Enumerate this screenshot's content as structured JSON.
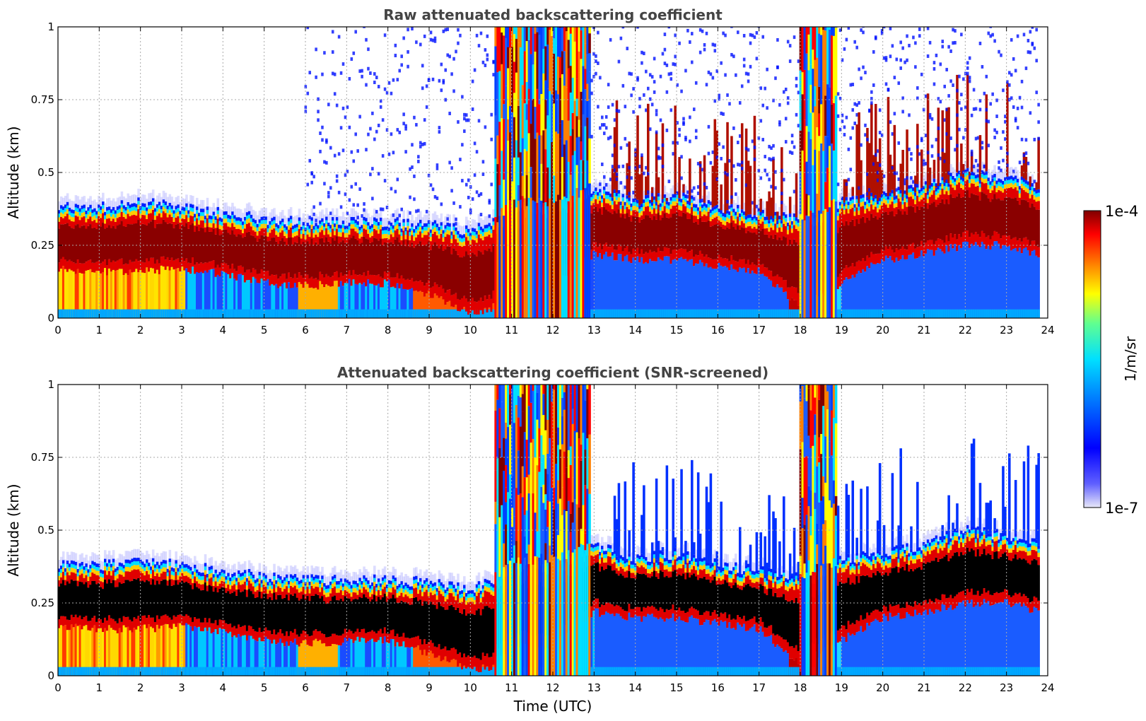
{
  "chart_data": [
    {
      "type": "heatmap",
      "title": "Raw attenuated backscattering coefficient",
      "xlabel": "",
      "ylabel": "Altitude (km)",
      "xlim": [
        0,
        24
      ],
      "ylim": [
        0,
        1
      ],
      "xticks": [
        "0",
        "1",
        "2",
        "3",
        "4",
        "5",
        "6",
        "7",
        "8",
        "9",
        "10",
        "11",
        "12",
        "13",
        "14",
        "15",
        "16",
        "17",
        "18",
        "19",
        "20",
        "21",
        "22",
        "23",
        "24"
      ],
      "yticks": [
        "0",
        "0.25",
        "0.5",
        "0.75",
        "1"
      ],
      "grid": true,
      "data_end_time": 23.8,
      "layer": {
        "time": [
          0,
          1,
          2,
          3,
          4,
          5,
          6,
          7,
          8,
          9,
          10,
          10.5,
          11,
          12,
          13,
          14,
          15,
          16,
          17,
          18,
          19,
          20,
          21,
          22,
          23,
          23.8
        ],
        "top_km": [
          0.38,
          0.38,
          0.4,
          0.38,
          0.36,
          0.34,
          0.33,
          0.33,
          0.33,
          0.32,
          0.3,
          0.32,
          0.4,
          0.4,
          0.45,
          0.4,
          0.42,
          0.38,
          0.36,
          0.34,
          0.4,
          0.42,
          0.45,
          0.5,
          0.48,
          0.45
        ],
        "base_km": [
          0.17,
          0.16,
          0.16,
          0.17,
          0.15,
          0.12,
          0.11,
          0.12,
          0.12,
          0.08,
          0.02,
          0.03,
          0.1,
          0.1,
          0.22,
          0.2,
          0.2,
          0.18,
          0.16,
          0.04,
          0.12,
          0.2,
          0.22,
          0.25,
          0.25,
          0.22
        ]
      }
    },
    {
      "type": "heatmap",
      "title": "Attenuated backscattering coefficient (SNR-screened)",
      "xlabel": "Time (UTC)",
      "ylabel": "Altitude (km)",
      "xlim": [
        0,
        24
      ],
      "ylim": [
        0,
        1
      ],
      "xticks": [
        "0",
        "1",
        "2",
        "3",
        "4",
        "5",
        "6",
        "7",
        "8",
        "9",
        "10",
        "11",
        "12",
        "13",
        "14",
        "15",
        "16",
        "17",
        "18",
        "19",
        "20",
        "21",
        "22",
        "23",
        "24"
      ],
      "yticks": [
        "0",
        "0.25",
        "0.5",
        "0.75",
        "1"
      ],
      "grid": true,
      "data_end_time": 23.8,
      "layer": {
        "time": [
          0,
          1,
          2,
          3,
          4,
          5,
          6,
          7,
          8,
          9,
          10,
          10.5,
          11,
          12,
          13,
          14,
          15,
          16,
          17,
          18,
          19,
          20,
          21,
          22,
          23,
          23.8
        ],
        "top_km": [
          0.38,
          0.38,
          0.4,
          0.38,
          0.36,
          0.34,
          0.33,
          0.33,
          0.33,
          0.32,
          0.3,
          0.32,
          0.4,
          0.4,
          0.45,
          0.4,
          0.42,
          0.38,
          0.36,
          0.34,
          0.4,
          0.42,
          0.45,
          0.5,
          0.48,
          0.45
        ],
        "base_km": [
          0.17,
          0.16,
          0.16,
          0.17,
          0.15,
          0.12,
          0.11,
          0.12,
          0.12,
          0.08,
          0.02,
          0.03,
          0.1,
          0.1,
          0.22,
          0.2,
          0.2,
          0.18,
          0.16,
          0.04,
          0.12,
          0.2,
          0.22,
          0.25,
          0.25,
          0.22
        ]
      }
    }
  ],
  "colorbar": {
    "label": "1/m/sr",
    "max_label": "1e-4",
    "min_label": "1e-7",
    "scale": "log",
    "colormap": [
      "#e8e8f8",
      "#0000ff",
      "#0070ff",
      "#00e0ff",
      "#60ff90",
      "#ffff00",
      "#ff8000",
      "#ff0000",
      "#800000"
    ]
  }
}
